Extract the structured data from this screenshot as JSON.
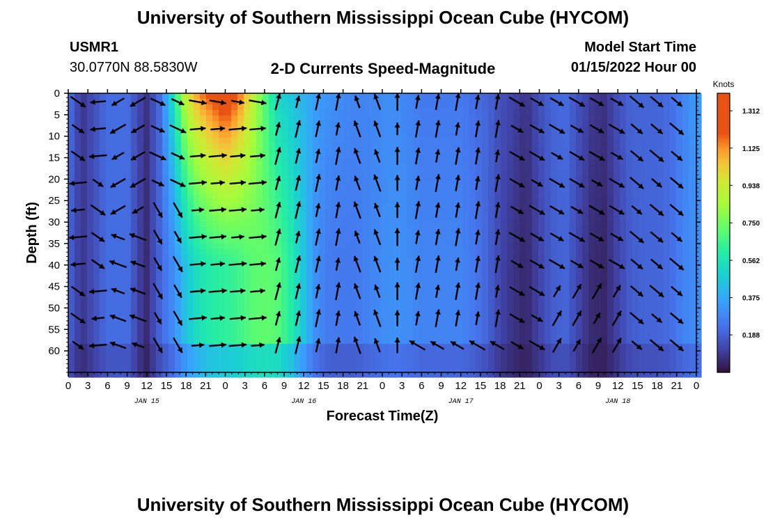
{
  "header": {
    "title": "University of Southern Mississippi Ocean Cube (HYCOM)",
    "station_id": "USMR1",
    "station_coords": "30.0770N  88.5830W",
    "chart_subtitle": "2-D Currents Speed-Magnitude",
    "model_start_label": "Model Start Time",
    "model_start_value": "01/15/2022 Hour 00"
  },
  "footer": {
    "title": "University of Southern Mississippi Ocean Cube (HYCOM)"
  },
  "chart_data": {
    "type": "heatmap",
    "title": "2-D Currents Speed-Magnitude",
    "xlabel": "Forecast Time(Z)",
    "ylabel": "Depth (ft)",
    "x_hours_range": [
      0,
      96
    ],
    "x_tick_step_hours": 3,
    "x_tick_labels": [
      "0",
      "3",
      "6",
      "9",
      "12",
      "15",
      "18",
      "21",
      "0",
      "3",
      "6",
      "9",
      "12",
      "15",
      "18",
      "21",
      "0",
      "3",
      "6",
      "9",
      "12",
      "15",
      "18",
      "21",
      "0",
      "3",
      "6",
      "9",
      "12",
      "15",
      "18",
      "21",
      "0"
    ],
    "x_day_labels": [
      {
        "label": "JAN 15",
        "hour": 12
      },
      {
        "label": "JAN 16",
        "hour": 36
      },
      {
        "label": "JAN 17",
        "hour": 60
      },
      {
        "label": "JAN 18",
        "hour": 84
      }
    ],
    "y_range": [
      0,
      65
    ],
    "y_reversed": true,
    "y_ticks": [
      0,
      5,
      10,
      15,
      20,
      25,
      30,
      35,
      40,
      45,
      50,
      55,
      60
    ],
    "colorbar": {
      "unit_label": "Knots",
      "range": [
        0,
        1.4
      ],
      "tick_labels": [
        "1.312",
        "1.125",
        "0.938",
        "0.750",
        "0.562",
        "0.375",
        "0.188"
      ],
      "tick_values": [
        1.312,
        1.125,
        0.938,
        0.75,
        0.562,
        0.375,
        0.188
      ]
    },
    "speed_profile": {
      "description_hours": [
        0,
        2,
        6,
        9,
        11,
        12,
        14,
        16,
        18,
        20,
        22,
        24,
        26,
        28,
        30,
        32,
        34,
        36,
        38,
        40,
        42,
        44,
        46,
        48,
        50,
        52,
        54,
        56,
        58,
        60,
        62,
        64,
        66,
        68,
        70,
        72,
        74,
        76,
        78,
        80,
        82,
        84,
        86,
        88,
        90,
        92,
        94,
        96
      ],
      "surface_speed": [
        0.25,
        0.08,
        0.22,
        0.22,
        0.12,
        0.08,
        0.22,
        0.55,
        0.95,
        1.15,
        1.25,
        1.35,
        1.2,
        0.95,
        0.7,
        0.5,
        0.45,
        0.4,
        0.35,
        0.32,
        0.3,
        0.28,
        0.28,
        0.3,
        0.3,
        0.28,
        0.25,
        0.25,
        0.25,
        0.25,
        0.22,
        0.2,
        0.15,
        0.12,
        0.08,
        0.15,
        0.2,
        0.22,
        0.15,
        0.1,
        0.08,
        0.15,
        0.2,
        0.2,
        0.2,
        0.22,
        0.28,
        0.35
      ],
      "deep_speed": [
        0.2,
        0.08,
        0.22,
        0.22,
        0.1,
        0.06,
        0.2,
        0.3,
        0.45,
        0.55,
        0.6,
        0.62,
        0.65,
        0.7,
        0.72,
        0.7,
        0.6,
        0.45,
        0.3,
        0.25,
        0.25,
        0.25,
        0.28,
        0.3,
        0.32,
        0.3,
        0.28,
        0.28,
        0.28,
        0.28,
        0.25,
        0.2,
        0.12,
        0.08,
        0.05,
        0.12,
        0.18,
        0.2,
        0.12,
        0.06,
        0.05,
        0.12,
        0.18,
        0.2,
        0.2,
        0.22,
        0.28,
        0.3
      ]
    }
  }
}
